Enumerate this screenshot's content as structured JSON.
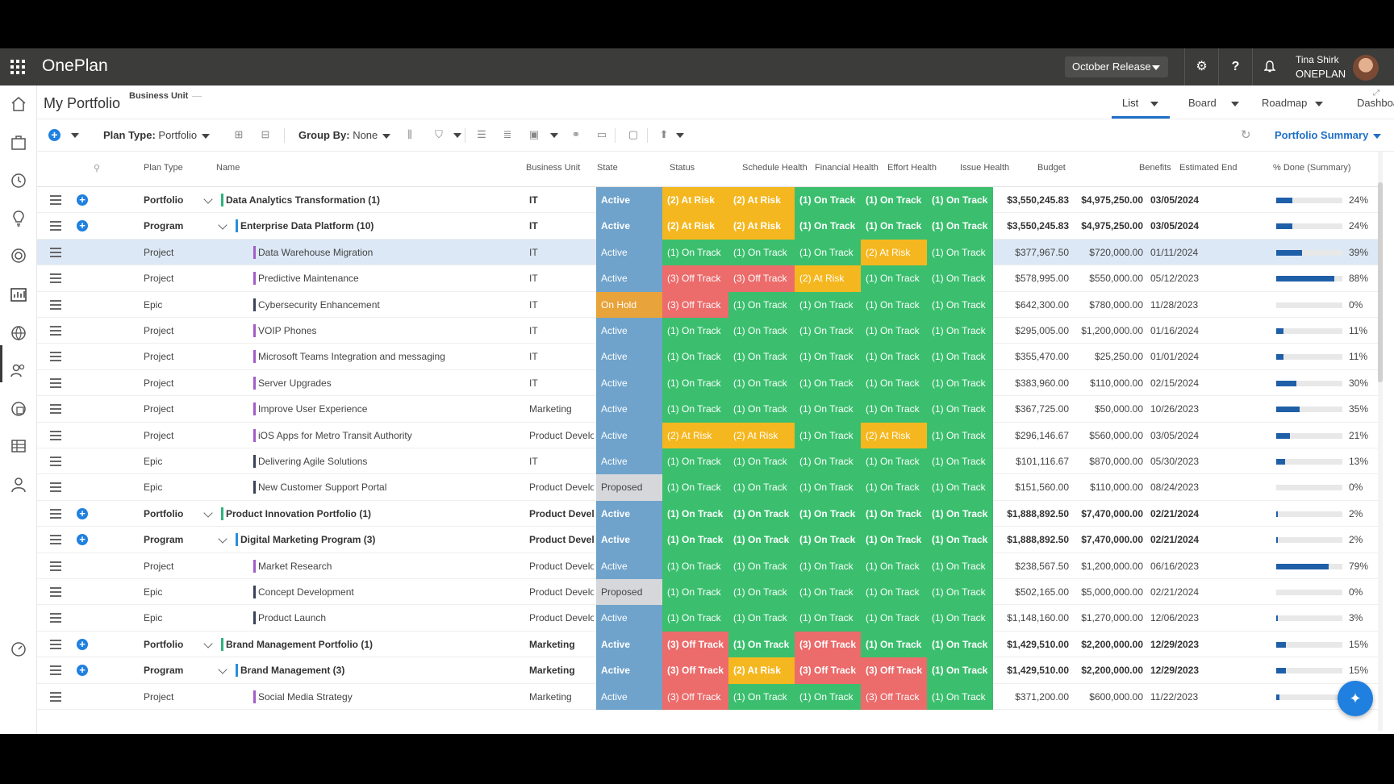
{
  "app": {
    "name": "OnePlan",
    "release": "October Release",
    "user_name": "Tina Shirk",
    "user_org": "ONEPLAN"
  },
  "page": {
    "title": "My Portfolio",
    "filter_label": "Business Unit"
  },
  "view_tabs": [
    {
      "label": "List",
      "active": true
    },
    {
      "label": "Board",
      "active": false
    },
    {
      "label": "Roadmap",
      "active": false
    },
    {
      "label": "Dashboard",
      "active": false
    }
  ],
  "toolbar": {
    "plan_type_label": "Plan Type:",
    "plan_type_value": "Portfolio",
    "group_by_label": "Group By:",
    "group_by_value": "None",
    "summary_label": "Portfolio Summary"
  },
  "columns": {
    "plan_type": "Plan Type",
    "name": "Name",
    "business_unit": "Business Unit",
    "state": "State",
    "status": "Status",
    "schedule_health": "Schedule Health",
    "financial_health": "Financial Health",
    "effort_health": "Effort Health",
    "issue_health": "Issue Health",
    "budget": "Budget",
    "benefits": "Benefits",
    "estimated_end": "Estimated End",
    "pct_done": "% Done (Summary)"
  },
  "colors": {
    "active": "#6fa3cc",
    "on_hold": "#e8a33a",
    "proposed": "#d5d7da",
    "on_track": "#3bbf6e",
    "at_risk": "#f5b71f",
    "off_track": "#ec6b6b",
    "accent": "#1f6fc5",
    "portfolio_bar": "#2db37c",
    "program_bar": "#2a8fd6",
    "project_bar": "#a25dc7",
    "epic_bar": "#3a4256"
  },
  "rows": [
    {
      "type": "Portfolio",
      "level": 0,
      "name": "Data Analytics Transformation (1)",
      "bu": "IT",
      "state": "Active",
      "status": "(2) At Risk",
      "schedule": "(2) At Risk",
      "financial": "(1) On Track",
      "effort": "(1) On Track",
      "issue": "(1) On Track",
      "budget": "$3,550,245.83",
      "benefits": "$4,975,250.00",
      "end": "03/05/2024",
      "pct": "24%"
    },
    {
      "type": "Program",
      "level": 1,
      "name": "Enterprise Data Platform (10)",
      "bu": "IT",
      "state": "Active",
      "status": "(2) At Risk",
      "schedule": "(2) At Risk",
      "financial": "(1) On Track",
      "effort": "(1) On Track",
      "issue": "(1) On Track",
      "budget": "$3,550,245.83",
      "benefits": "$4,975,250.00",
      "end": "03/05/2024",
      "pct": "24%"
    },
    {
      "type": "Project",
      "level": 2,
      "name": "Data Warehouse Migration",
      "bu": "IT",
      "state": "Active",
      "status": "(1) On Track",
      "schedule": "(1) On Track",
      "financial": "(1) On Track",
      "effort": "(2) At Risk",
      "issue": "(1) On Track",
      "budget": "$377,967.50",
      "benefits": "$720,000.00",
      "end": "01/11/2024",
      "pct": "39%",
      "selected": true
    },
    {
      "type": "Project",
      "level": 2,
      "name": "Predictive Maintenance",
      "bu": "IT",
      "state": "Active",
      "status": "(3) Off Track",
      "schedule": "(3) Off Track",
      "financial": "(2) At Risk",
      "effort": "(1) On Track",
      "issue": "(1) On Track",
      "budget": "$578,995.00",
      "benefits": "$550,000.00",
      "end": "05/12/2023",
      "pct": "88%"
    },
    {
      "type": "Epic",
      "level": 2,
      "name": "Cybersecurity Enhancement",
      "bu": "IT",
      "state": "On Hold",
      "status": "(3) Off Track",
      "schedule": "(1) On Track",
      "financial": "(1) On Track",
      "effort": "(1) On Track",
      "issue": "(1) On Track",
      "budget": "$642,300.00",
      "benefits": "$780,000.00",
      "end": "11/28/2023",
      "pct": "0%"
    },
    {
      "type": "Project",
      "level": 2,
      "name": "VOIP Phones",
      "bu": "IT",
      "state": "Active",
      "status": "(1) On Track",
      "schedule": "(1) On Track",
      "financial": "(1) On Track",
      "effort": "(1) On Track",
      "issue": "(1) On Track",
      "budget": "$295,005.00",
      "benefits": "$1,200,000.00",
      "end": "01/16/2024",
      "pct": "11%"
    },
    {
      "type": "Project",
      "level": 2,
      "name": "Microsoft Teams Integration and messaging",
      "bu": "IT",
      "state": "Active",
      "status": "(1) On Track",
      "schedule": "(1) On Track",
      "financial": "(1) On Track",
      "effort": "(1) On Track",
      "issue": "(1) On Track",
      "budget": "$355,470.00",
      "benefits": "$25,250.00",
      "end": "01/01/2024",
      "pct": "11%"
    },
    {
      "type": "Project",
      "level": 2,
      "name": "Server Upgrades",
      "bu": "IT",
      "state": "Active",
      "status": "(1) On Track",
      "schedule": "(1) On Track",
      "financial": "(1) On Track",
      "effort": "(1) On Track",
      "issue": "(1) On Track",
      "budget": "$383,960.00",
      "benefits": "$110,000.00",
      "end": "02/15/2024",
      "pct": "30%"
    },
    {
      "type": "Project",
      "level": 2,
      "name": "Improve User Experience",
      "bu": "Marketing",
      "state": "Active",
      "status": "(1) On Track",
      "schedule": "(1) On Track",
      "financial": "(1) On Track",
      "effort": "(1) On Track",
      "issue": "(1) On Track",
      "budget": "$367,725.00",
      "benefits": "$50,000.00",
      "end": "10/26/2023",
      "pct": "35%"
    },
    {
      "type": "Project",
      "level": 2,
      "name": "iOS Apps for Metro Transit Authority",
      "bu": "Product Develop",
      "state": "Active",
      "status": "(2) At Risk",
      "schedule": "(2) At Risk",
      "financial": "(1) On Track",
      "effort": "(2) At Risk",
      "issue": "(1) On Track",
      "budget": "$296,146.67",
      "benefits": "$560,000.00",
      "end": "03/05/2024",
      "pct": "21%"
    },
    {
      "type": "Epic",
      "level": 2,
      "name": "Delivering Agile Solutions",
      "bu": "IT",
      "state": "Active",
      "status": "(1) On Track",
      "schedule": "(1) On Track",
      "financial": "(1) On Track",
      "effort": "(1) On Track",
      "issue": "(1) On Track",
      "budget": "$101,116.67",
      "benefits": "$870,000.00",
      "end": "05/30/2023",
      "pct": "13%"
    },
    {
      "type": "Epic",
      "level": 2,
      "name": "New Customer Support Portal",
      "bu": "Product Develop",
      "state": "Proposed",
      "status": "(1) On Track",
      "schedule": "(1) On Track",
      "financial": "(1) On Track",
      "effort": "(1) On Track",
      "issue": "(1) On Track",
      "budget": "$151,560.00",
      "benefits": "$110,000.00",
      "end": "08/24/2023",
      "pct": "0%"
    },
    {
      "type": "Portfolio",
      "level": 0,
      "name": "Product Innovation Portfolio (1)",
      "bu": "Product Develo",
      "state": "Active",
      "status": "(1) On Track",
      "schedule": "(1) On Track",
      "financial": "(1) On Track",
      "effort": "(1) On Track",
      "issue": "(1) On Track",
      "budget": "$1,888,892.50",
      "benefits": "$7,470,000.00",
      "end": "02/21/2024",
      "pct": "2%"
    },
    {
      "type": "Program",
      "level": 1,
      "name": "Digital Marketing Program (3)",
      "bu": "Product Develo",
      "state": "Active",
      "status": "(1) On Track",
      "schedule": "(1) On Track",
      "financial": "(1) On Track",
      "effort": "(1) On Track",
      "issue": "(1) On Track",
      "budget": "$1,888,892.50",
      "benefits": "$7,470,000.00",
      "end": "02/21/2024",
      "pct": "2%"
    },
    {
      "type": "Project",
      "level": 2,
      "name": "Market Research",
      "bu": "Product Develop",
      "state": "Active",
      "status": "(1) On Track",
      "schedule": "(1) On Track",
      "financial": "(1) On Track",
      "effort": "(1) On Track",
      "issue": "(1) On Track",
      "budget": "$238,567.50",
      "benefits": "$1,200,000.00",
      "end": "06/16/2023",
      "pct": "79%"
    },
    {
      "type": "Epic",
      "level": 2,
      "name": "Concept Development",
      "bu": "Product Develop",
      "state": "Proposed",
      "status": "(1) On Track",
      "schedule": "(1) On Track",
      "financial": "(1) On Track",
      "effort": "(1) On Track",
      "issue": "(1) On Track",
      "budget": "$502,165.00",
      "benefits": "$5,000,000.00",
      "end": "02/21/2024",
      "pct": "0%"
    },
    {
      "type": "Epic",
      "level": 2,
      "name": "Product Launch",
      "bu": "Product Develop",
      "state": "Active",
      "status": "(1) On Track",
      "schedule": "(1) On Track",
      "financial": "(1) On Track",
      "effort": "(1) On Track",
      "issue": "(1) On Track",
      "budget": "$1,148,160.00",
      "benefits": "$1,270,000.00",
      "end": "12/06/2023",
      "pct": "3%"
    },
    {
      "type": "Portfolio",
      "level": 0,
      "name": "Brand Management Portfolio (1)",
      "bu": "Marketing",
      "state": "Active",
      "status": "(3) Off Track",
      "schedule": "(1) On Track",
      "financial": "(3) Off Track",
      "effort": "(1) On Track",
      "issue": "(1) On Track",
      "budget": "$1,429,510.00",
      "benefits": "$2,200,000.00",
      "end": "12/29/2023",
      "pct": "15%"
    },
    {
      "type": "Program",
      "level": 1,
      "name": "Brand Management (3)",
      "bu": "Marketing",
      "state": "Active",
      "status": "(3) Off Track",
      "schedule": "(2) At Risk",
      "financial": "(3) Off Track",
      "effort": "(3) Off Track",
      "issue": "(1) On Track",
      "budget": "$1,429,510.00",
      "benefits": "$2,200,000.00",
      "end": "12/29/2023",
      "pct": "15%"
    },
    {
      "type": "Project",
      "level": 2,
      "name": "Social Media Strategy",
      "bu": "Marketing",
      "state": "Active",
      "status": "(3) Off Track",
      "schedule": "(1) On Track",
      "financial": "(1) On Track",
      "effort": "(3) Off Track",
      "issue": "(1) On Track",
      "budget": "$371,200.00",
      "benefits": "$600,000.00",
      "end": "11/22/2023",
      "pct": "5%"
    }
  ]
}
